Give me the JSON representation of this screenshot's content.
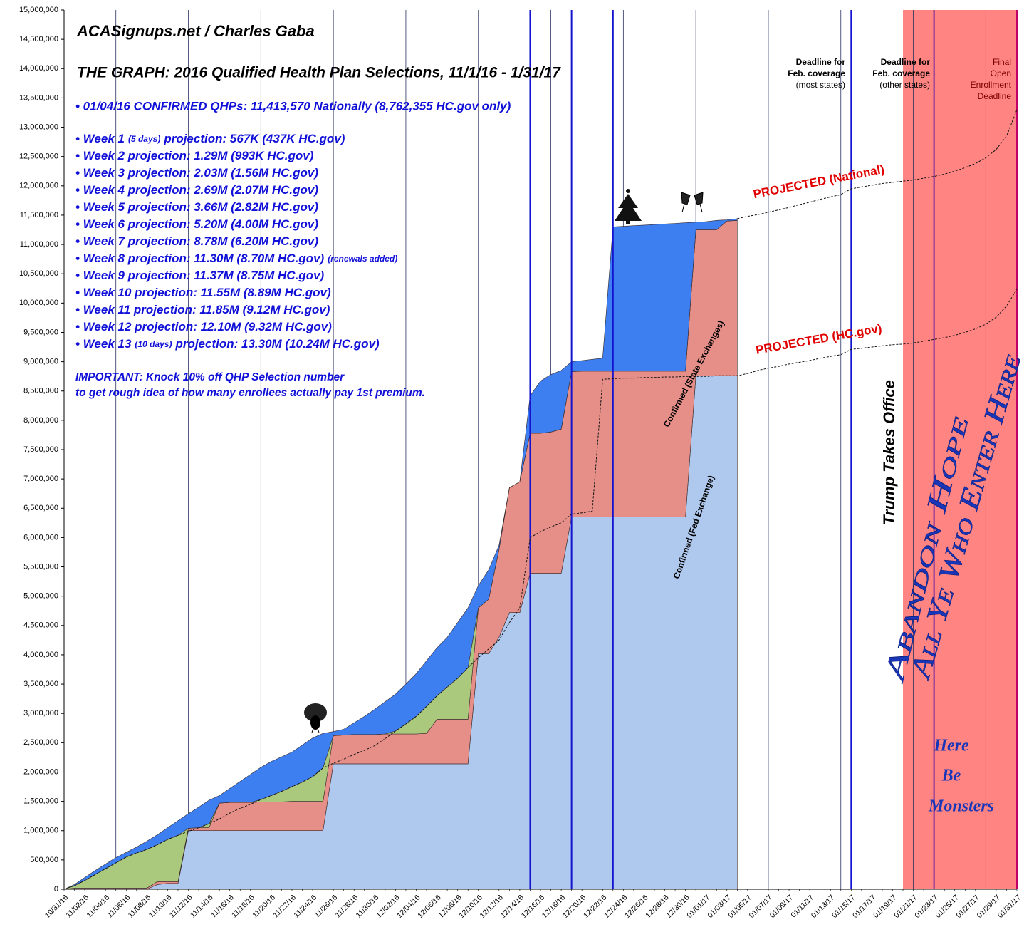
{
  "chart_data": {
    "type": "stacked_area",
    "ylim": [
      0,
      15000000
    ],
    "yticks": [
      0,
      {
        "value": 500000,
        "label": "500,000"
      },
      {
        "value": 1000000,
        "label": "1,000,000"
      },
      {
        "value": 1500000,
        "label": "1,500,000"
      },
      {
        "value": 2000000,
        "label": "2,000,000"
      },
      {
        "value": 2500000,
        "label": "2,500,000"
      },
      {
        "value": 3000000,
        "label": "3,000,000"
      },
      {
        "value": 3500000,
        "label": "3,500,000"
      },
      {
        "value": 4000000,
        "label": "4,000,000"
      },
      {
        "value": 4500000,
        "label": "4,500,000"
      },
      {
        "value": 5000000,
        "label": "5,000,000"
      },
      {
        "value": 5500000,
        "label": "5,500,000"
      },
      {
        "value": 6000000,
        "label": "6,000,000"
      },
      {
        "value": 6500000,
        "label": "6,500,000"
      },
      {
        "value": 7000000,
        "label": "7,000,000"
      },
      {
        "value": 7500000,
        "label": "7,500,000"
      },
      {
        "value": 8000000,
        "label": "8,000,000"
      },
      {
        "value": 8500000,
        "label": "8,500,000"
      },
      {
        "value": 9000000,
        "label": "9,000,000"
      },
      {
        "value": 9500000,
        "label": "9,500,000"
      },
      {
        "value": 10000000,
        "label": "10,000,000"
      },
      {
        "value": 10500000,
        "label": "10,500,000"
      },
      {
        "value": 11000000,
        "label": "11,000,000"
      },
      {
        "value": 11500000,
        "label": "11,500,000"
      },
      {
        "value": 12000000,
        "label": "12,000,000"
      },
      {
        "value": 12500000,
        "label": "12,500,000"
      },
      {
        "value": 13000000,
        "label": "13,000,000"
      },
      {
        "value": 13500000,
        "label": "13,500,000"
      },
      {
        "value": 14000000,
        "label": "14,000,000"
      },
      {
        "value": 14500000,
        "label": "14,500,000"
      },
      {
        "value": 15000000,
        "label": "15,000,000"
      }
    ],
    "categories": [
      "10/31/16",
      null,
      "11/02/16",
      null,
      "11/04/16",
      null,
      "11/06/16",
      null,
      "11/08/16",
      null,
      "11/10/16",
      null,
      "11/12/16",
      null,
      "11/14/16",
      null,
      "11/16/16",
      null,
      "11/18/16",
      null,
      "11/20/16",
      null,
      "11/22/16",
      null,
      "11/24/16",
      null,
      "11/26/16",
      null,
      "11/28/16",
      null,
      "11/30/16",
      null,
      "12/02/16",
      null,
      "12/04/16",
      null,
      "12/06/16",
      null,
      "12/08/16",
      null,
      "12/10/16",
      null,
      "12/12/16",
      null,
      "12/14/16",
      null,
      "12/16/16",
      null,
      "12/18/16",
      null,
      "12/20/16",
      null,
      "12/22/16",
      null,
      "12/24/16",
      null,
      "12/26/16",
      null,
      "12/28/16",
      null,
      "12/30/16",
      null,
      "01/01/17",
      null,
      "01/03/17",
      null,
      "01/05/17",
      null,
      "01/07/17",
      null,
      "01/09/17",
      null,
      "01/11/17",
      null,
      "01/13/17",
      null,
      "01/15/17",
      null,
      "01/17/17",
      null,
      "01/19/17",
      null,
      "01/21/17",
      null,
      "01/23/17",
      null,
      "01/25/17",
      null,
      "01/27/17",
      null,
      "01/29/17",
      null,
      "01/31/17"
    ],
    "series": [
      {
        "name": "Confirmed (Fed Exchange)",
        "type": "area",
        "color": "#afc8ee",
        "values": [
          0,
          0,
          0,
          0,
          0,
          0,
          0,
          0,
          0,
          80000,
          100000,
          100000,
          1000000,
          1000000,
          1000000,
          1000000,
          1000000,
          1000000,
          1000000,
          1000000,
          1000000,
          1000000,
          1000000,
          1000000,
          1000000,
          1000000,
          2140000,
          2140000,
          2140000,
          2140000,
          2140000,
          2140000,
          2140000,
          2140000,
          2140000,
          2140000,
          2140000,
          2140000,
          2140000,
          2140000,
          4020000,
          4020000,
          4300000,
          4720000,
          4720000,
          5390000,
          5390000,
          5390000,
          5390000,
          6350000,
          6350000,
          6350000,
          6350000,
          6350000,
          6350000,
          6350000,
          6350000,
          6350000,
          6350000,
          6350000,
          6350000,
          8760000,
          8760000,
          8760000,
          8760000,
          8760000,
          null,
          null,
          null,
          null,
          null,
          null,
          null,
          null,
          null,
          null,
          null,
          null,
          null,
          null,
          null,
          null,
          null,
          null,
          null,
          null,
          null,
          null,
          null,
          null,
          null,
          null,
          null
        ]
      },
      {
        "name": "Confirmed (State Exchanges)",
        "type": "area",
        "color": "#e58f88",
        "values": [
          0,
          20000,
          20000,
          20000,
          20000,
          20000,
          20000,
          20000,
          20000,
          50000,
          30000,
          30000,
          40000,
          50000,
          50000,
          470000,
          480000,
          480000,
          480000,
          490000,
          490000,
          490000,
          500000,
          500000,
          500000,
          500000,
          480000,
          490000,
          500000,
          500000,
          500000,
          510000,
          510000,
          510000,
          510000,
          520000,
          760000,
          760000,
          760000,
          760000,
          780000,
          930000,
          1500000,
          2130000,
          2230000,
          2390000,
          2390000,
          2410000,
          2460000,
          2480000,
          2490000,
          2490000,
          2490000,
          2490000,
          2490000,
          2490000,
          2490000,
          2490000,
          2490000,
          2490000,
          2490000,
          2490000,
          2490000,
          2490000,
          2640000,
          2650000,
          null,
          null,
          null,
          null,
          null,
          null,
          null,
          null,
          null,
          null,
          null,
          null,
          null,
          null,
          null,
          null,
          null,
          null,
          null,
          null,
          null,
          null,
          null,
          null,
          null,
          null,
          null
        ]
      },
      {
        "type": "area",
        "color": "#aac97c",
        "values": [
          0,
          40000,
          130000,
          230000,
          330000,
          430000,
          530000,
          600000,
          660000,
          630000,
          720000,
          790000,
          0,
          0,
          70000,
          0,
          0,
          0,
          0,
          40000,
          110000,
          180000,
          250000,
          330000,
          420000,
          570000,
          0,
          0,
          0,
          0,
          0,
          0,
          50000,
          170000,
          300000,
          460000,
          400000,
          550000,
          700000,
          880000,
          0,
          0,
          0,
          0,
          0,
          0,
          0,
          0,
          0,
          0,
          0,
          0,
          0,
          0,
          0,
          0,
          0,
          0,
          0,
          0,
          0,
          0,
          0,
          0,
          0,
          0,
          null,
          null,
          null,
          null,
          null,
          null,
          null,
          null,
          null,
          null,
          null,
          null,
          null,
          null,
          null,
          null,
          null,
          null,
          null,
          null,
          null,
          null,
          null,
          null,
          null,
          null,
          null
        ]
      },
      {
        "type": "area",
        "color": "#3d7ef0",
        "values": [
          0,
          20000,
          50000,
          70000,
          80000,
          90000,
          80000,
          100000,
          140000,
          170000,
          200000,
          250000,
          250000,
          350000,
          400000,
          130000,
          240000,
          360000,
          480000,
          550000,
          580000,
          590000,
          590000,
          630000,
          660000,
          590000,
          70000,
          100000,
          200000,
          310000,
          430000,
          550000,
          630000,
          680000,
          730000,
          780000,
          820000,
          850000,
          950000,
          1020000,
          380000,
          500000,
          70000,
          0,
          0,
          640000,
          890000,
          980000,
          1000000,
          170000,
          180000,
          200000,
          220000,
          2460000,
          2470000,
          2480000,
          2490000,
          2500000,
          2510000,
          2520000,
          2530000,
          130000,
          140000,
          160000,
          20000,
          30000,
          null,
          null,
          null,
          null,
          null,
          null,
          null,
          null,
          null,
          null,
          null,
          null,
          null,
          null,
          null,
          null,
          null,
          null,
          null,
          null,
          null,
          null,
          null,
          null,
          null,
          null,
          null
        ]
      },
      {
        "name": "PROJECTED (HC.gov)",
        "type": "line",
        "dashed": true,
        "color": "#111111",
        "values": [
          0,
          60000,
          150000,
          250000,
          350000,
          450000,
          550000,
          620000,
          680000,
          760000,
          850000,
          920000,
          990000,
          1050000,
          1120000,
          1200000,
          1300000,
          1380000,
          1450000,
          1530000,
          1600000,
          1670000,
          1750000,
          1830000,
          1920000,
          2070000,
          2150000,
          2220000,
          2300000,
          2370000,
          2450000,
          2570000,
          2700000,
          2820000,
          2950000,
          3120000,
          3300000,
          3450000,
          3600000,
          3780000,
          3950000,
          4100000,
          4250000,
          4550000,
          4800000,
          6000000,
          6100000,
          6180000,
          6250000,
          6400000,
          6420000,
          6450000,
          8700000,
          8710000,
          8720000,
          8720000,
          8730000,
          8730000,
          8740000,
          8740000,
          8750000,
          8750000,
          8750000,
          8760000,
          8760000,
          8760000,
          8800000,
          8850000,
          8890000,
          8920000,
          8960000,
          8990000,
          9020000,
          9060000,
          9090000,
          9120000,
          9210000,
          9230000,
          9250000,
          9270000,
          9290000,
          9300000,
          9320000,
          9350000,
          9380000,
          9410000,
          9450000,
          9500000,
          9560000,
          9640000,
          9760000,
          9950000,
          10240000
        ]
      },
      {
        "name": "PROJECTED (National)",
        "type": "line",
        "dashed": true,
        "color": "#111111",
        "values": [
          null,
          null,
          null,
          null,
          null,
          null,
          null,
          null,
          null,
          null,
          null,
          null,
          null,
          null,
          null,
          null,
          null,
          null,
          null,
          null,
          null,
          null,
          null,
          null,
          null,
          null,
          null,
          null,
          null,
          null,
          null,
          null,
          null,
          null,
          null,
          null,
          null,
          null,
          null,
          null,
          null,
          null,
          null,
          null,
          null,
          null,
          null,
          null,
          null,
          null,
          null,
          null,
          null,
          null,
          null,
          null,
          null,
          null,
          null,
          null,
          null,
          null,
          null,
          null,
          null,
          11440000,
          11480000,
          11510000,
          11550000,
          11590000,
          11630000,
          11680000,
          11720000,
          11770000,
          11810000,
          11850000,
          11950000,
          11980000,
          12010000,
          12040000,
          12060000,
          12080000,
          12100000,
          12130000,
          12160000,
          12200000,
          12250000,
          12310000,
          12380000,
          12480000,
          12620000,
          12850000,
          13300000
        ]
      }
    ],
    "annotations": {
      "source": "ACASignups.net / Charles Gaba",
      "title": "THE GRAPH: 2016 Qualified Health Plan Selections, 11/1/16 - 1/31/17",
      "headline": "• 01/04/16 CONFIRMED QHPs: 11,413,570 Nationally (8,762,355 HC.gov only)",
      "weeks": [
        [
          "• Week 1",
          "(5 days)",
          "projection: 567K (437K HC.gov)"
        ],
        [
          "• Week 2 projection: 1.29M (993K HC.gov)"
        ],
        [
          "• Week 3 projection: 2.03M (1.56M HC.gov)"
        ],
        [
          "• Week 4 projection: 2.69M (2.07M HC.gov)"
        ],
        [
          "• Week 5 projection: 3.66M (2.82M HC.gov)"
        ],
        [
          "• Week 6 projection: 5.20M (4.00M HC.gov)"
        ],
        [
          "• Week 7 projection: 8.78M (6.20M HC.gov)"
        ],
        [
          "• Week 8 projection: 11.30M (8.70M HC.gov)",
          "(renewals added)"
        ],
        [
          "• Week 9 projection: 11.37M (8.75M HC.gov)"
        ],
        [
          "• Week 10 projection: 11.55M (8.89M HC.gov)"
        ],
        [
          "• Week 11 projection: 11.85M (9.12M HC.gov)"
        ],
        [
          "• Week 12 projection: 12.10M (9.32M HC.gov)"
        ],
        [
          "• Week 13",
          "(10 days)",
          "projection: 13.30M (10.24M HC.gov)"
        ]
      ],
      "important": [
        "IMPORTANT: Knock 10% off QHP Selection number",
        "to get rough idea of how many enrollees actually pay 1st premium."
      ],
      "deadline_most": [
        "Deadline for",
        "Feb. coverage",
        "(most states)"
      ],
      "deadline_other": [
        "Deadline for",
        "Feb. coverage",
        "(other states)"
      ],
      "final": [
        "Final",
        "Open",
        "Enrollment",
        "Deadline"
      ],
      "trump": "Trump Takes Office",
      "abandon": [
        "Abandon Hope",
        "All Ye Who Enter Here"
      ],
      "monsters": [
        "Here",
        "Be",
        "Monsters"
      ]
    }
  }
}
